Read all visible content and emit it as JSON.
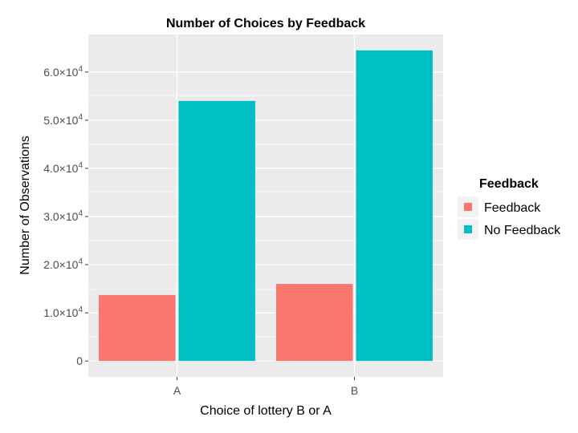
{
  "chart_data": {
    "type": "bar",
    "title": "Number of Choices by Feedback",
    "xlabel": "Choice of lottery B or A",
    "ylabel": "Number of Observations",
    "categories": [
      "A",
      "B"
    ],
    "series": [
      {
        "name": "Feedback",
        "color": "#F8766D",
        "values": [
          13700,
          16000
        ]
      },
      {
        "name": "No Feedback",
        "color": "#00BFC4",
        "values": [
          54000,
          64500
        ]
      }
    ],
    "ylim": [
      -3300,
      67800
    ],
    "yticks": [
      0,
      10000,
      20000,
      30000,
      40000,
      50000,
      60000
    ],
    "ytick_labels": [
      {
        "value": 0,
        "mantissa": "0",
        "exponent": ""
      },
      {
        "value": 10000,
        "mantissa": "1.0×10",
        "exponent": "4"
      },
      {
        "value": 20000,
        "mantissa": "2.0×10",
        "exponent": "4"
      },
      {
        "value": 30000,
        "mantissa": "3.0×10",
        "exponent": "4"
      },
      {
        "value": 40000,
        "mantissa": "4.0×10",
        "exponent": "4"
      },
      {
        "value": 50000,
        "mantissa": "5.0×10",
        "exponent": "4"
      },
      {
        "value": 60000,
        "mantissa": "6.0×10",
        "exponent": "4"
      }
    ],
    "legend": {
      "title": "Feedback",
      "position": "right"
    },
    "grid": true,
    "panel_color": "#EBEBEB",
    "grid_color": "#FFFFFF"
  }
}
